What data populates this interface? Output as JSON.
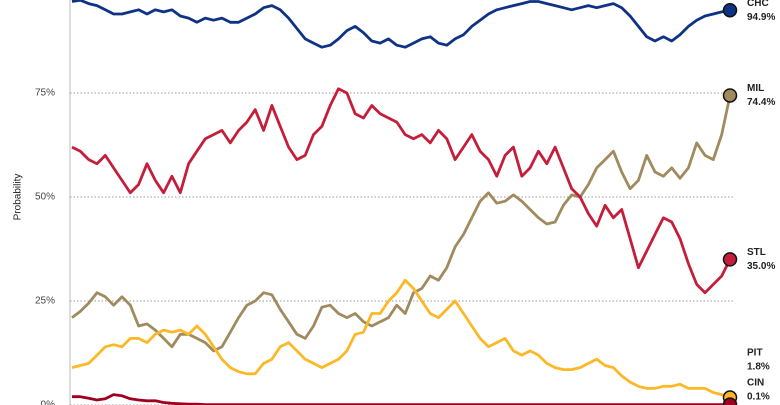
{
  "chart_data": {
    "type": "line",
    "y_label": "Probability",
    "ylim": [
      0,
      100
    ],
    "yticks": [
      {
        "value": 0,
        "label": "0%"
      },
      {
        "value": 25,
        "label": "25%"
      },
      {
        "value": 50,
        "label": "50%"
      },
      {
        "value": 75,
        "label": "75%"
      }
    ],
    "grid": true,
    "series": [
      {
        "name": "CHC",
        "color": "#0e3386",
        "values": [
          97,
          97.3,
          96.5,
          96,
          95,
          94,
          94,
          94.5,
          95,
          94,
          95,
          94.5,
          95,
          93.5,
          93,
          92,
          93,
          92.5,
          93,
          92,
          92,
          93,
          94,
          95.5,
          96,
          95,
          93,
          90.5,
          88,
          87,
          86,
          86.5,
          88,
          90,
          91,
          89.5,
          87.5,
          87,
          88,
          86.5,
          86,
          87,
          88,
          88.5,
          87,
          86.5,
          88,
          89,
          91,
          92.5,
          94,
          95,
          95.5,
          96,
          96.5,
          97,
          97,
          96.5,
          96,
          95.5,
          95,
          95.5,
          96,
          95.5,
          96,
          96.5,
          95.5,
          93.5,
          91,
          88.5,
          87.5,
          88.5,
          87.5,
          89,
          91,
          92.5,
          93.5,
          94,
          94.5,
          94.9
        ],
        "value_labels": [
          null,
          null,
          null,
          null,
          null,
          null,
          null,
          null,
          null,
          null,
          null,
          null,
          null,
          null,
          null,
          null,
          null,
          null,
          null,
          null,
          null,
          null,
          null,
          null,
          null,
          null,
          null,
          null,
          null,
          null,
          null,
          null,
          null,
          null,
          null,
          null,
          null,
          null,
          null,
          null,
          null,
          null,
          null,
          null,
          null,
          null,
          null,
          null,
          null,
          null,
          null,
          null,
          null,
          null,
          null,
          null,
          null,
          null,
          null,
          null,
          null,
          null,
          null,
          null,
          null,
          null,
          null,
          null,
          null,
          null,
          null,
          null,
          null,
          null,
          null,
          null,
          null,
          null,
          null,
          "94.9%"
        ]
      },
      {
        "name": "MIL",
        "color": "#a08a5e",
        "values": [
          21,
          22.5,
          24.5,
          27,
          26,
          24,
          26,
          24,
          19,
          19.5,
          18,
          16,
          14,
          17,
          17,
          16,
          15,
          13,
          14,
          17.5,
          21,
          24,
          25,
          27,
          26.5,
          23,
          20,
          17,
          16,
          19,
          23.5,
          24,
          22,
          21,
          22,
          20,
          19,
          20,
          21,
          24,
          22,
          27,
          28,
          31,
          30,
          33,
          38,
          41,
          45,
          49,
          51,
          48.5,
          49,
          50.5,
          49,
          47,
          45,
          43.5,
          44,
          48,
          50.5,
          50,
          53,
          57,
          59,
          61,
          56,
          52,
          54,
          60,
          56,
          55,
          57,
          54.5,
          57,
          63,
          60,
          59,
          65,
          74.4
        ],
        "value_labels": [
          null,
          null,
          null,
          null,
          null,
          null,
          null,
          null,
          null,
          null,
          null,
          null,
          null,
          null,
          null,
          null,
          null,
          null,
          null,
          null,
          null,
          null,
          null,
          null,
          null,
          null,
          null,
          null,
          null,
          null,
          null,
          null,
          null,
          null,
          null,
          null,
          null,
          null,
          null,
          null,
          null,
          null,
          null,
          null,
          null,
          null,
          null,
          null,
          null,
          null,
          null,
          null,
          null,
          null,
          null,
          null,
          null,
          null,
          null,
          null,
          null,
          null,
          null,
          null,
          null,
          null,
          null,
          null,
          null,
          null,
          null,
          null,
          null,
          null,
          null,
          null,
          null,
          null,
          null,
          "74.4%"
        ]
      },
      {
        "name": "STL",
        "color": "#c41e3a",
        "values": [
          62,
          61,
          59,
          58,
          60,
          57,
          54,
          51,
          53,
          58,
          54,
          51,
          55,
          51,
          58,
          61,
          64,
          65,
          66,
          63,
          66,
          68,
          71,
          66,
          72,
          67,
          62,
          59,
          60,
          65,
          67,
          72,
          76,
          75,
          70,
          69,
          72,
          70,
          69,
          68,
          65,
          64,
          65,
          63,
          66,
          64,
          59,
          62,
          65,
          61,
          59,
          55,
          60,
          62,
          55,
          57,
          61,
          58,
          62,
          57,
          52,
          50,
          46,
          43,
          48,
          45,
          47,
          40,
          33,
          37,
          41,
          45,
          44,
          40,
          34,
          29,
          27,
          29,
          31,
          35
        ],
        "value_labels": [
          null,
          null,
          null,
          null,
          null,
          null,
          null,
          null,
          null,
          null,
          null,
          null,
          null,
          null,
          null,
          null,
          null,
          null,
          null,
          null,
          null,
          null,
          null,
          null,
          null,
          null,
          null,
          null,
          null,
          null,
          null,
          null,
          null,
          null,
          null,
          null,
          null,
          null,
          null,
          null,
          null,
          null,
          null,
          null,
          null,
          null,
          null,
          null,
          null,
          null,
          null,
          null,
          null,
          null,
          null,
          null,
          null,
          null,
          null,
          null,
          null,
          null,
          null,
          null,
          null,
          null,
          null,
          null,
          null,
          null,
          null,
          null,
          null,
          null,
          null,
          null,
          null,
          null,
          null,
          "35.0%"
        ]
      },
      {
        "name": "PIT",
        "color": "#fdb827",
        "values": [
          9,
          9.5,
          10,
          12,
          14,
          14.5,
          14,
          16,
          16,
          15,
          17,
          18,
          17.5,
          18,
          17,
          19,
          17,
          14,
          11,
          9,
          8,
          7.5,
          7.5,
          10,
          11,
          14,
          15,
          13,
          11,
          10,
          9,
          10,
          11,
          13,
          17,
          17.5,
          22,
          22,
          25,
          27,
          30,
          28,
          25,
          22,
          21,
          23,
          25,
          22,
          19,
          16,
          14,
          15,
          16,
          13,
          12,
          13,
          12,
          10,
          9,
          8.5,
          8.5,
          9,
          10,
          11,
          9.5,
          9,
          7,
          5.5,
          4.5,
          4,
          4,
          4.5,
          4.5,
          5,
          4,
          4,
          4,
          3,
          2.5,
          1.8
        ],
        "value_labels": [
          null,
          null,
          null,
          null,
          null,
          null,
          null,
          null,
          null,
          null,
          null,
          null,
          null,
          null,
          null,
          null,
          null,
          null,
          null,
          null,
          null,
          null,
          null,
          null,
          null,
          null,
          null,
          null,
          null,
          null,
          null,
          null,
          null,
          null,
          null,
          null,
          null,
          null,
          null,
          null,
          null,
          null,
          null,
          null,
          null,
          null,
          null,
          null,
          null,
          null,
          null,
          null,
          null,
          null,
          null,
          null,
          null,
          null,
          null,
          null,
          null,
          null,
          null,
          null,
          null,
          null,
          null,
          null,
          null,
          null,
          null,
          null,
          null,
          null,
          null,
          null,
          null,
          null,
          null,
          "1.8%"
        ]
      },
      {
        "name": "CIN",
        "color": "#a00020",
        "values": [
          2,
          2,
          1.6,
          1.2,
          1.5,
          2.5,
          2.2,
          1.5,
          1.2,
          1,
          1,
          0.6,
          0.4,
          0.3,
          0.2,
          0.2,
          0.1,
          0.1,
          0.1,
          0.1,
          0.1,
          0.1,
          0.1,
          0.1,
          0.1,
          0.1,
          0.1,
          0.1,
          0.1,
          0.1,
          0.1,
          0.1,
          0.1,
          0.1,
          0.1,
          0.1,
          0.1,
          0.1,
          0.1,
          0.1,
          0.1,
          0.1,
          0.1,
          0.1,
          0.1,
          0.1,
          0.1,
          0.1,
          0.1,
          0.1,
          0.1,
          0.1,
          0.1,
          0.1,
          0.1,
          0.1,
          0.1,
          0.1,
          0.1,
          0.1,
          0.1,
          0.1,
          0.1,
          0.1,
          0.1,
          0.1,
          0.1,
          0.1,
          0.1,
          0.1,
          0.1,
          0.1,
          0.1,
          0.1,
          0.1,
          0.1,
          0.1,
          0.1,
          0.1,
          0.1
        ],
        "value_labels": [
          null,
          null,
          null,
          null,
          null,
          null,
          null,
          null,
          null,
          null,
          null,
          null,
          null,
          null,
          null,
          null,
          null,
          null,
          null,
          null,
          null,
          null,
          null,
          null,
          null,
          null,
          null,
          null,
          null,
          null,
          null,
          null,
          null,
          null,
          null,
          null,
          null,
          null,
          null,
          null,
          null,
          null,
          null,
          null,
          null,
          null,
          null,
          null,
          null,
          null,
          null,
          null,
          null,
          null,
          null,
          null,
          null,
          null,
          null,
          null,
          null,
          null,
          null,
          null,
          null,
          null,
          null,
          null,
          null,
          null,
          null,
          null,
          null,
          null,
          null,
          null,
          null,
          null,
          null,
          "0.1%"
        ]
      }
    ]
  }
}
